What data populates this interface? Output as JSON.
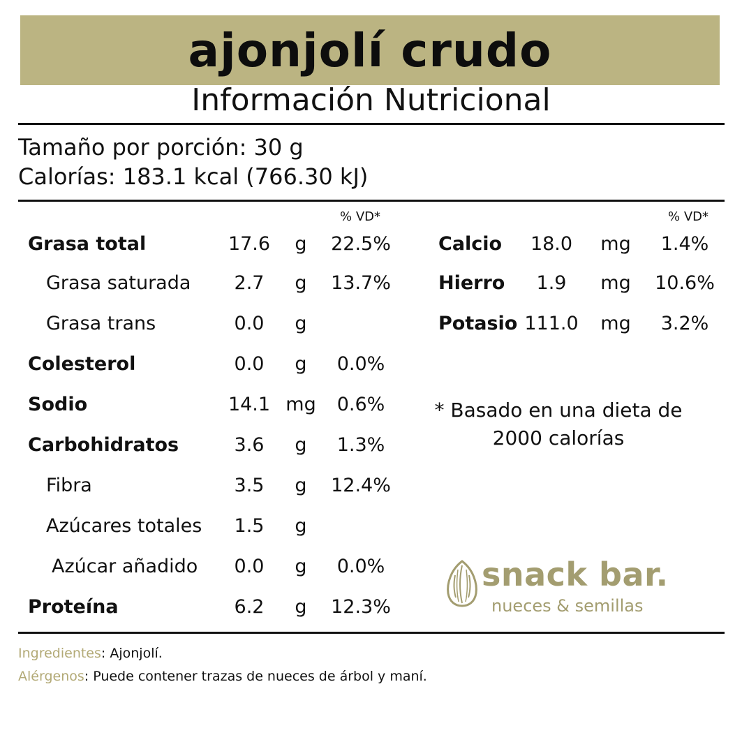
{
  "header": {
    "title": "ajonjolí crudo",
    "subtitle": "Información Nutricional"
  },
  "serving": {
    "size": "Tamaño por porción: 30 g",
    "calories": "Calorías: 183.1 kcal (766.30 kJ)"
  },
  "left_table": {
    "vd_header": "% VD*",
    "rows": [
      {
        "label": "Grasa total",
        "value": "17.6",
        "unit": "g",
        "vd": "22.5%"
      },
      {
        "label": "Grasa saturada",
        "value": "2.7",
        "unit": "g",
        "vd": "13.7%"
      },
      {
        "label": "Grasa trans",
        "value": "0.0",
        "unit": "g",
        "vd": ""
      },
      {
        "label": "Colesterol",
        "value": "0.0",
        "unit": "g",
        "vd": "0.0%"
      },
      {
        "label": "Sodio",
        "value": "14.1",
        "unit": "mg",
        "vd": "0.6%"
      },
      {
        "label": "Carbohidratos",
        "value": "3.6",
        "unit": "g",
        "vd": "1.3%"
      },
      {
        "label": "Fibra",
        "value": "3.5",
        "unit": "g",
        "vd": "12.4%"
      },
      {
        "label": "Azúcares totales",
        "value": "1.5",
        "unit": "g",
        "vd": ""
      },
      {
        "label": "Azúcar añadido",
        "value": "0.0",
        "unit": "g",
        "vd": "0.0%"
      },
      {
        "label": "Proteína",
        "value": "6.2",
        "unit": "g",
        "vd": "12.3%"
      }
    ]
  },
  "right_table": {
    "vd_header": "% VD*",
    "rows": [
      {
        "label": "Calcio",
        "value": "18.0",
        "unit": "mg",
        "vd": "1.4%"
      },
      {
        "label": "Hierro",
        "value": "1.9",
        "unit": "mg",
        "vd": "10.6%"
      },
      {
        "label": "Potasio",
        "value": "111.0",
        "unit": "mg",
        "vd": "3.2%"
      }
    ]
  },
  "note": {
    "line1": "* Basado en una dieta de",
    "line2": "2000 calorías"
  },
  "brand": {
    "name": "snack bar.",
    "tagline": "nueces & semillas",
    "icon": "almond-icon",
    "color": "#a39d70"
  },
  "footer": {
    "ingredients_key": "Ingredientes",
    "ingredients_value": ": Ajonjolí.",
    "allergens_key": "Alérgenos",
    "allergens_value": ": Puede contener trazas de nueces de árbol y maní."
  },
  "colors": {
    "band": "#bbb482",
    "accent_text": "#b3aa77"
  }
}
